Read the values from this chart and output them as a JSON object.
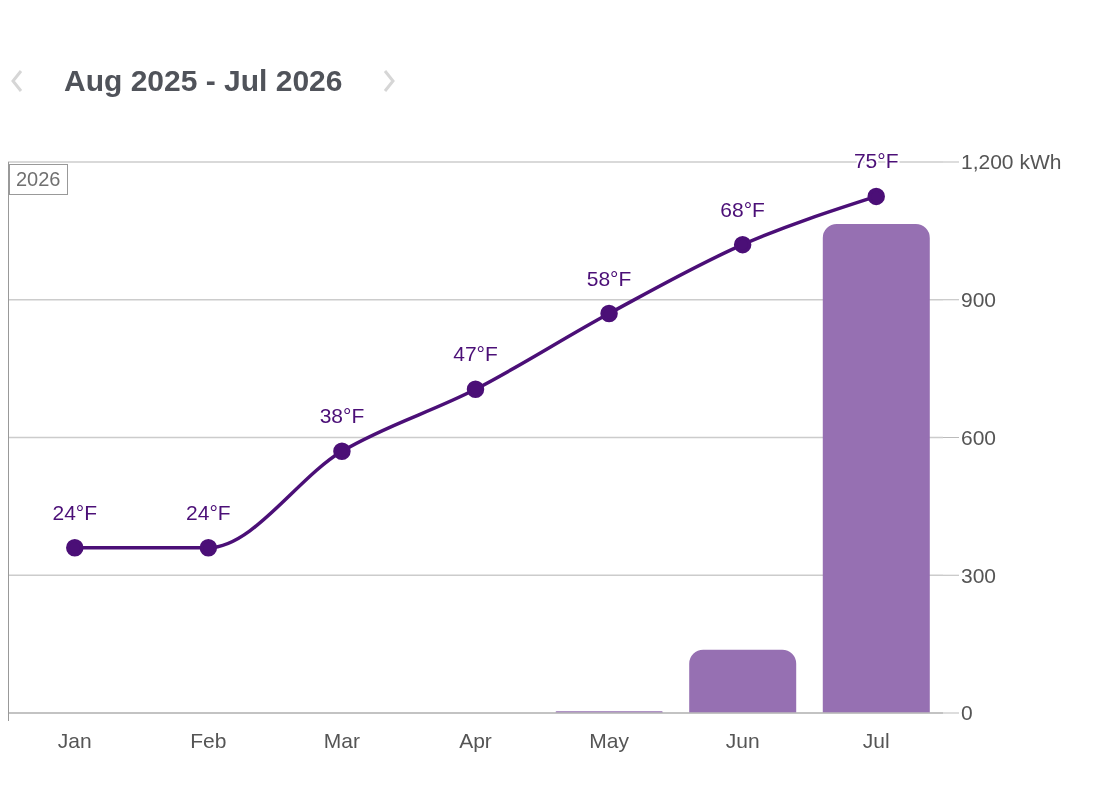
{
  "chart_data": {
    "type": "bar",
    "title": "Aug 2025 - Jul 2026",
    "categories": [
      "Jan",
      "Feb",
      "Mar",
      "Apr",
      "May",
      "Jun",
      "Jul"
    ],
    "series": [
      {
        "color": "#9670b2",
        "values": [
          null,
          null,
          null,
          null,
          4,
          138,
          1065
        ]
      },
      {
        "type": "line",
        "axis": "y2",
        "color": "#4b0f77",
        "values": [
          24,
          24,
          38,
          47,
          58,
          68,
          75
        ],
        "value_labels": [
          "24°F",
          "24°F",
          "38°F",
          "47°F",
          "58°F",
          "68°F",
          "75°F"
        ]
      }
    ],
    "ylim": [
      0,
      1200
    ],
    "yticks": [
      0,
      300,
      600,
      900,
      {
        "value": 1200,
        "label": "1,200 kWh"
      }
    ],
    "y2lim": [
      0,
      80
    ],
    "annotations": [
      "2026"
    ],
    "grid": "y",
    "marker": "circle",
    "line_style": "solid"
  }
}
